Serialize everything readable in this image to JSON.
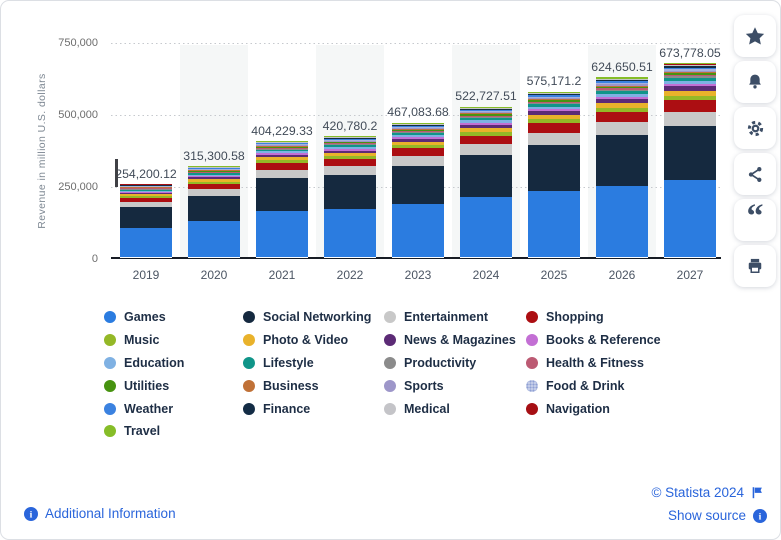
{
  "chart_data": {
    "type": "bar",
    "stacked": true,
    "ylabel": "Revenue in million U.S. dollars",
    "ylim": [
      0,
      750000
    ],
    "ytick_labels": [
      "750,000",
      "500,000",
      "250,000",
      "0"
    ],
    "grid": "dotted-horizontal",
    "legend_position": "bottom",
    "categories": [
      "2019",
      "2020",
      "2021",
      "2022",
      "2023",
      "2024",
      "2025",
      "2026",
      "2027"
    ],
    "totals": [
      254200.12,
      315300.58,
      404229.33,
      420780.2,
      467083.68,
      522727.51,
      575171.2,
      624650.51,
      673778.05
    ],
    "total_labels": [
      "254,200.12",
      "315,300.58",
      "404,229.33",
      "420,780.2",
      "467,083.68",
      "522,727.51",
      "575,171.2",
      "624,650.51",
      "673,778.05"
    ],
    "striped_column_indices": [
      1,
      3,
      5,
      7
    ],
    "series": [
      {
        "name": "Games",
        "color": "#2b7ce0",
        "estimated_share": 0.397
      },
      {
        "name": "Social Networking",
        "color": "#15293f",
        "estimated_share": 0.28
      },
      {
        "name": "Entertainment",
        "color": "#c8c8c8",
        "estimated_share": 0.072
      },
      {
        "name": "Shopping",
        "color": "#ac0e12",
        "estimated_share": 0.058
      },
      {
        "name": "Music",
        "color": "#94b827",
        "estimated_share": 0.024
      },
      {
        "name": "Photo & Video",
        "color": "#e9b22b",
        "estimated_share": 0.027
      },
      {
        "name": "News & Magazines",
        "color": "#5c2b76",
        "estimated_share": 0.021
      },
      {
        "name": "Books & Reference",
        "color": "#c36fd4",
        "estimated_share": 0.013
      },
      {
        "name": "Education",
        "color": "#7fb1e3",
        "estimated_share": 0.017
      },
      {
        "name": "Lifestyle",
        "color": "#109589",
        "estimated_share": 0.013
      },
      {
        "name": "Productivity",
        "color": "#8b8b8b",
        "estimated_share": 0.009
      },
      {
        "name": "Health & Fitness",
        "color": "#bc5a73",
        "estimated_share": 0.008
      },
      {
        "name": "Utilities",
        "color": "#479310",
        "estimated_share": 0.009
      },
      {
        "name": "Business",
        "color": "#c07137",
        "estimated_share": 0.006
      },
      {
        "name": "Sports",
        "color": "#9d96c9",
        "estimated_share": 0.007
      },
      {
        "name": "Food & Drink",
        "color": "#a5b2dd",
        "estimated_share": 0.007,
        "pattern": "dots"
      },
      {
        "name": "Weather",
        "color": "#3b82e0",
        "estimated_share": 0.009
      },
      {
        "name": "Finance",
        "color": "#132c45",
        "estimated_share": 0.006
      },
      {
        "name": "Medical",
        "color": "#c4c4c8",
        "estimated_share": 0.005
      },
      {
        "name": "Navigation",
        "color": "#a60f14",
        "estimated_share": 0.005
      },
      {
        "name": "Travel",
        "color": "#86bd28",
        "estimated_share": 0.007
      }
    ]
  },
  "toolbar": {
    "buttons": [
      {
        "name": "favorite",
        "icon": "star-icon"
      },
      {
        "name": "notifications",
        "icon": "bell-icon"
      },
      {
        "name": "settings",
        "icon": "gear-icon"
      },
      {
        "name": "share",
        "icon": "share-icon"
      },
      {
        "name": "cite",
        "icon": "quote-icon"
      },
      {
        "name": "print",
        "icon": "printer-icon"
      }
    ]
  },
  "footer": {
    "additional_information": "Additional Information",
    "copyright": "© Statista 2024",
    "show_source": "Show source"
  },
  "colors": {
    "link_blue": "#2a65db",
    "icon_navy": "#3d4e66",
    "axis_text": "#6d6d6d"
  }
}
